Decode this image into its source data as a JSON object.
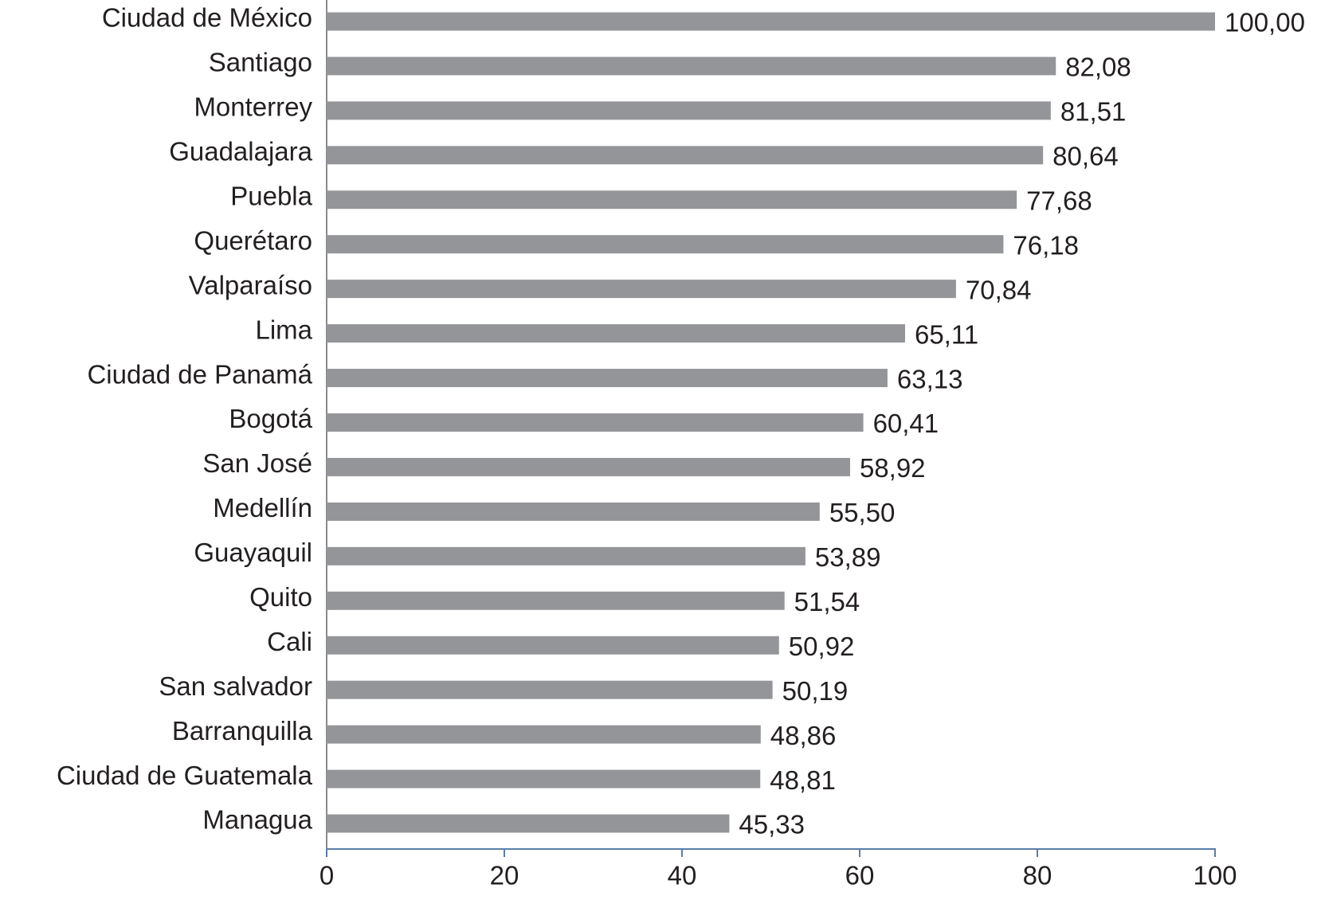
{
  "chart_data": {
    "type": "bar",
    "orientation": "horizontal",
    "categories": [
      "Ciudad de México",
      "Santiago",
      "Monterrey",
      "Guadalajara",
      "Puebla",
      "Querétaro",
      "Valparaíso",
      "Lima",
      "Ciudad de Panamá",
      "Bogotá",
      "San José",
      "Medellín",
      "Guayaquil",
      "Quito",
      "Cali",
      "San salvador",
      "Barranquilla",
      "Ciudad de Guatemala",
      "Managua"
    ],
    "values": [
      100.0,
      82.08,
      81.51,
      80.64,
      77.68,
      76.18,
      70.84,
      65.11,
      63.13,
      60.41,
      58.92,
      55.5,
      53.89,
      51.54,
      50.92,
      50.19,
      48.86,
      48.81,
      45.33
    ],
    "value_labels": [
      "100,00",
      "82,08",
      "81,51",
      "80,64",
      "77,68",
      "76,18",
      "70,84",
      "65,11",
      "63,13",
      "60,41",
      "58,92",
      "55,50",
      "53,89",
      "51,54",
      "50,92",
      "50,19",
      "48,86",
      "48,81",
      "45,33"
    ],
    "color": "#939598",
    "xlim": [
      0,
      100
    ],
    "xticks": [
      0,
      20,
      40,
      60,
      80,
      100
    ],
    "grid": false
  }
}
